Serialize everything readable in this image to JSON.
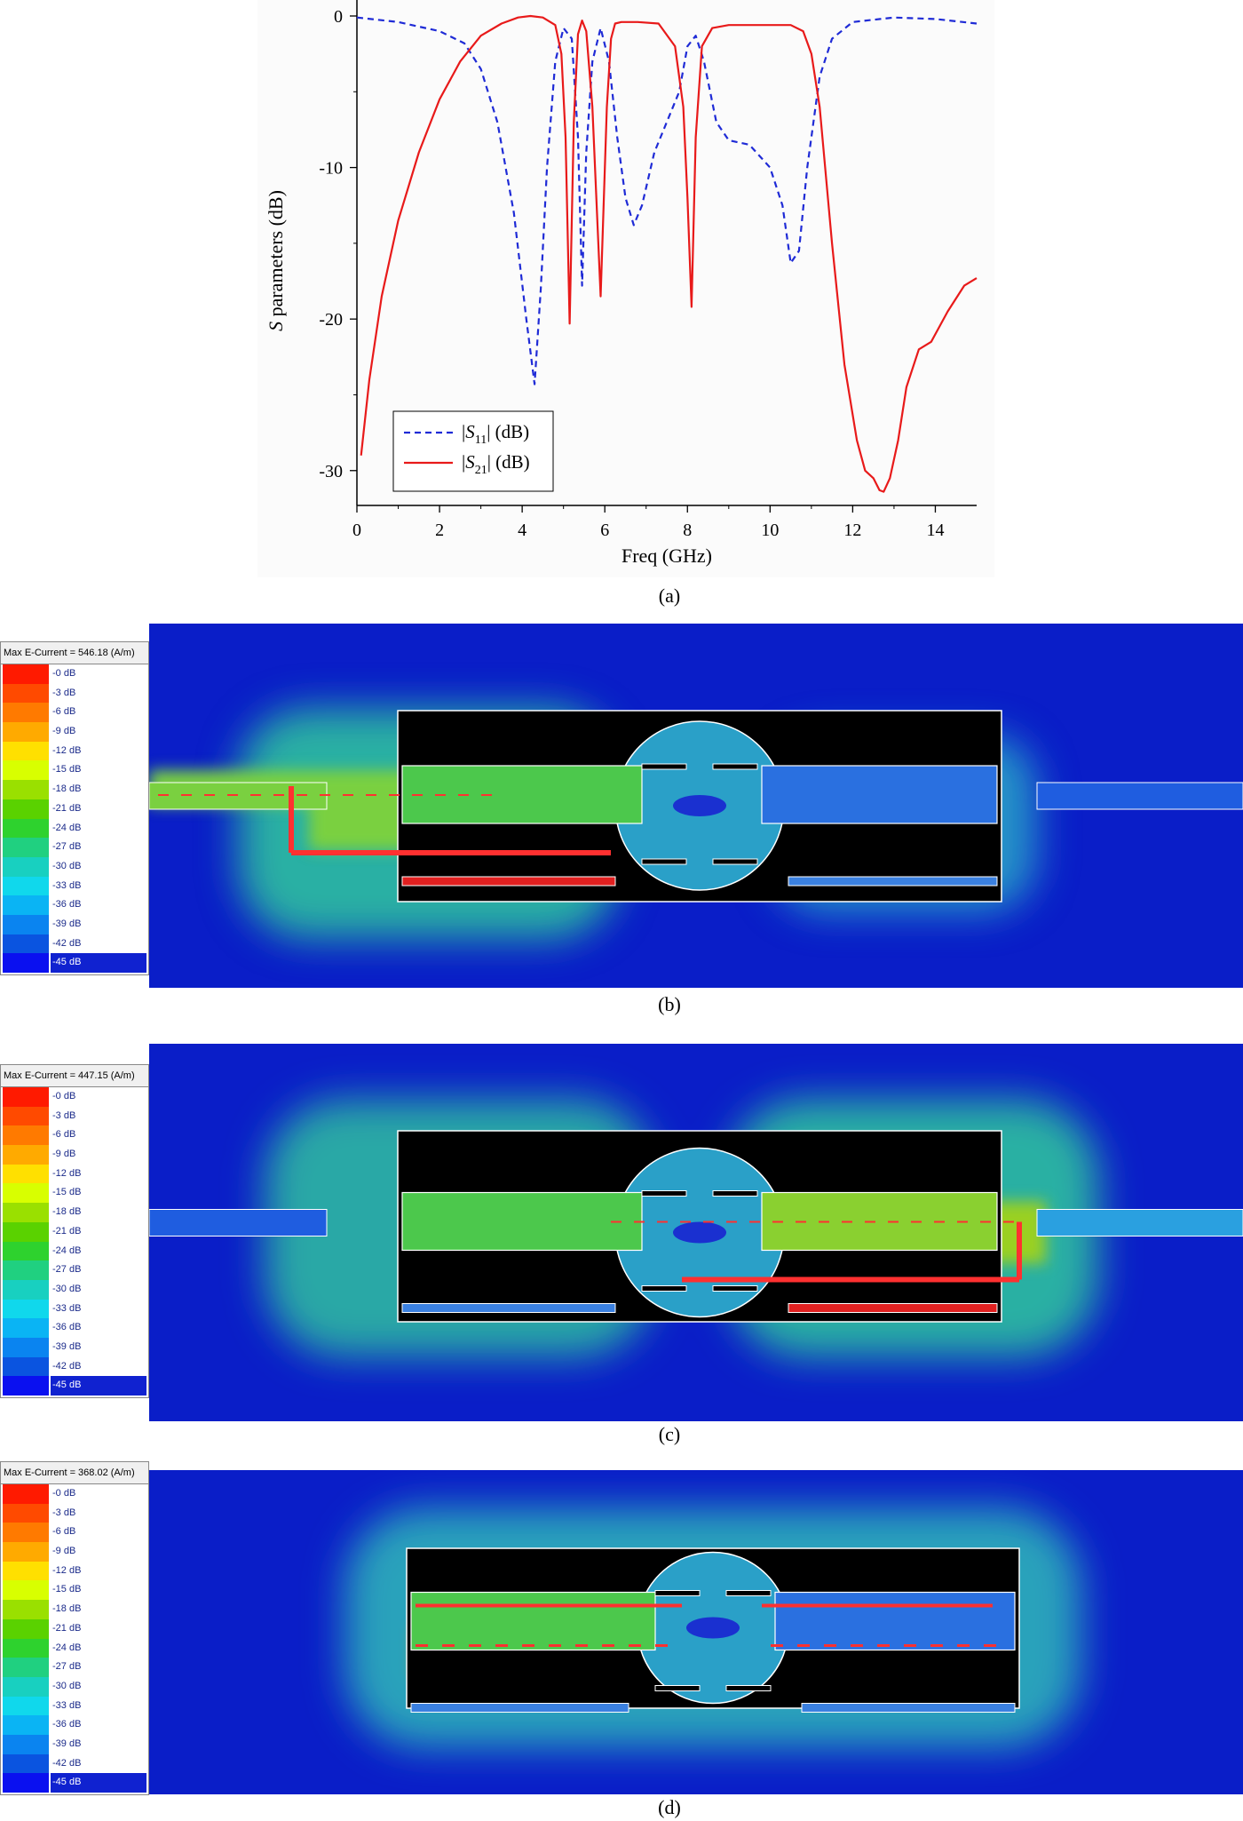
{
  "chart_data": {
    "type": "line",
    "xlabel": "Freq (GHz)",
    "ylabel_italic": "S",
    "ylabel_rest": " parameters (dB)",
    "xlim": [
      0,
      15
    ],
    "ylim": [
      -32,
      1
    ],
    "xticks": [
      "0",
      "2",
      "4",
      "6",
      "8",
      "10",
      "12",
      "14"
    ],
    "yticks": [
      "0",
      "-10",
      "-20",
      "-30"
    ],
    "grid": false,
    "legend_position": "bottom-left",
    "series": [
      {
        "name": "|S11| (dB)",
        "label_pre": "|",
        "label_italic": "S",
        "label_sub": "11",
        "label_post": "| (dB)",
        "style": "dashed",
        "color": "#1f2bd6",
        "x": [
          0,
          1,
          2,
          2.6,
          3,
          3.4,
          3.8,
          4.1,
          4.3,
          4.45,
          4.6,
          4.8,
          5.0,
          5.2,
          5.35,
          5.45,
          5.55,
          5.7,
          5.9,
          6.1,
          6.3,
          6.5,
          6.7,
          6.9,
          7.2,
          7.5,
          7.8,
          8.0,
          8.2,
          8.4,
          8.7,
          9.0,
          9.5,
          10.0,
          10.3,
          10.5,
          10.7,
          10.9,
          11.2,
          11.5,
          12.0,
          13.0,
          14.0,
          15.0
        ],
        "y": [
          -0.1,
          -0.4,
          -1,
          -1.8,
          -3.5,
          -7,
          -13,
          -20,
          -24.3,
          -18,
          -10,
          -3,
          -0.8,
          -1.5,
          -8,
          -17.8,
          -9,
          -3,
          -0.8,
          -3,
          -8,
          -12,
          -13.8,
          -12.5,
          -9,
          -7,
          -5,
          -2,
          -1.3,
          -3,
          -7,
          -8.2,
          -8.5,
          -10,
          -12.5,
          -16.3,
          -15.5,
          -10,
          -4,
          -1.5,
          -0.4,
          -0.1,
          -0.2,
          -0.5
        ]
      },
      {
        "name": "|S21| (dB)",
        "label_pre": "|",
        "label_italic": "S",
        "label_sub": "21",
        "label_post": "| (dB)",
        "style": "solid",
        "color": "#e81a1a",
        "x": [
          0.1,
          0.3,
          0.6,
          1.0,
          1.5,
          2.0,
          2.5,
          3.0,
          3.5,
          3.9,
          4.2,
          4.5,
          4.8,
          4.95,
          5.05,
          5.15,
          5.25,
          5.35,
          5.45,
          5.55,
          5.7,
          5.9,
          6.05,
          6.15,
          6.25,
          6.4,
          6.8,
          7.3,
          7.7,
          7.9,
          8.0,
          8.1,
          8.2,
          8.35,
          8.6,
          9.0,
          9.5,
          10.0,
          10.5,
          10.8,
          11.0,
          11.2,
          11.5,
          11.8,
          12.1,
          12.3,
          12.5,
          12.65,
          12.75,
          12.9,
          13.1,
          13.3,
          13.6,
          13.9,
          14.3,
          14.7,
          15.0
        ],
        "y": [
          -29,
          -24,
          -18.5,
          -13.5,
          -9,
          -5.5,
          -3,
          -1.3,
          -0.5,
          -0.1,
          0,
          -0.1,
          -0.6,
          -2.5,
          -8,
          -20.3,
          -7,
          -1.2,
          -0.3,
          -1,
          -6,
          -18.5,
          -6,
          -1.5,
          -0.5,
          -0.4,
          -0.4,
          -0.5,
          -2,
          -6,
          -12,
          -19.2,
          -8,
          -2,
          -0.8,
          -0.6,
          -0.6,
          -0.6,
          -0.6,
          -1,
          -2.5,
          -6,
          -15,
          -23,
          -28,
          -30,
          -30.5,
          -31.3,
          -31.4,
          -30.5,
          -28,
          -24.5,
          -22,
          -21.5,
          -19.5,
          -17.8,
          -17.3
        ]
      }
    ]
  },
  "panel_a": {
    "caption": "(a)"
  },
  "field_panels": [
    {
      "caption": "(b)",
      "max_label": "Max E-Current = 546.18 (A/m)"
    },
    {
      "caption": "(c)",
      "max_label": "Max E-Current = 447.15 (A/m)"
    },
    {
      "caption": "(d)",
      "max_label": "Max E-Current = 368.02 (A/m)"
    }
  ],
  "colorbar": {
    "labels": [
      "-0 dB",
      "-3 dB",
      "-6 dB",
      "-9 dB",
      "-12 dB",
      "-15 dB",
      "-18 dB",
      "-21 dB",
      "-24 dB",
      "-27 dB",
      "-30 dB",
      "-33 dB",
      "-36 dB",
      "-39 dB",
      "-42 dB",
      "-45 dB"
    ],
    "colors": [
      "#ff1a00",
      "#ff4a00",
      "#ff7a00",
      "#ffaa00",
      "#ffe000",
      "#d8ff00",
      "#9ae000",
      "#5ad200",
      "#2ed22e",
      "#20d080",
      "#18d0c0",
      "#10d8ec",
      "#0ab4f4",
      "#0a84f0",
      "#0a54e0",
      "#0a10f0"
    ]
  }
}
